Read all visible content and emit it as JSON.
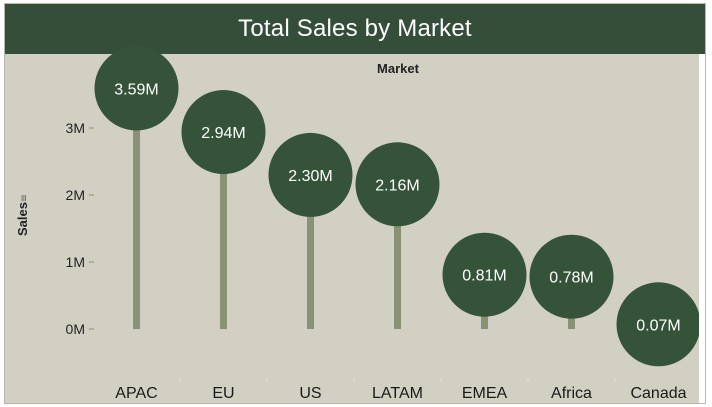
{
  "title": "Total Sales by Market",
  "chart_data": {
    "type": "scatter",
    "subtype": "lollipop",
    "title": "Total Sales by Market",
    "column_header": "Market",
    "xlabel": "",
    "ylabel": "Sales",
    "ylim": [
      0,
      3800000
    ],
    "yticks": [
      0,
      1000000,
      2000000,
      3000000
    ],
    "ytick_labels": [
      "0M",
      "1M",
      "2M",
      "3M"
    ],
    "categories": [
      "APAC",
      "EU",
      "US",
      "LATAM",
      "EMEA",
      "Africa",
      "Canada"
    ],
    "values": [
      3590000,
      2940000,
      2300000,
      2160000,
      810000,
      780000,
      70000
    ],
    "data_labels": [
      "3.59M",
      "2.94M",
      "2.30M",
      "2.16M",
      "0.81M",
      "0.78M",
      "0.07M"
    ],
    "sorted": "descending",
    "grid": false,
    "legend": "none"
  },
  "colors": {
    "title_bg": "#344e3a",
    "plot_bg": "#d2cfc3",
    "circle": "#355339",
    "stem": "#8a9275",
    "label": "#ffffff"
  }
}
